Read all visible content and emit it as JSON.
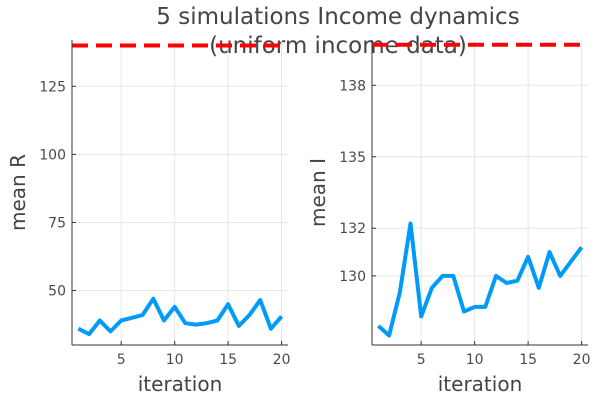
{
  "chart_data": {
    "title_line1": "5 simulations Income dynamics",
    "title_line2": "(uniform income data)",
    "line_color": "#009af9",
    "ref_color": "#ff0000",
    "panels": [
      {
        "type": "line",
        "xlabel": "iteration",
        "ylabel": "mean R",
        "xlim": [
          0.4,
          20.6
        ],
        "ylim": [
          30,
          142
        ],
        "xticks": [
          "5",
          "10",
          "15",
          "20"
        ],
        "yticks": [
          "50",
          "75",
          "100",
          "125"
        ],
        "reference_line": 140,
        "series": [
          {
            "x": [
              1,
              2,
              3,
              4,
              5,
              6,
              7,
              8,
              9,
              10,
              11,
              12,
              13,
              14,
              15,
              16,
              17,
              18,
              19,
              20
            ],
            "values": [
              36,
              34,
              39,
              35,
              39,
              40,
              41,
              47,
              39,
              44,
              38,
              37.5,
              38,
              39,
              45,
              37,
              41,
              46.5,
              36,
              40.5
            ]
          }
        ]
      },
      {
        "type": "line",
        "xlabel": "iteration",
        "ylabel": "mean I",
        "xlim": [
          0.4,
          20.6
        ],
        "ylim": [
          127.1,
          139.9
        ],
        "xticks": [
          "5",
          "10",
          "15",
          "20"
        ],
        "yticks": [
          "130",
          "132",
          "135",
          "138"
        ],
        "reference_line": 139.7,
        "series": [
          {
            "x": [
              1,
              2,
              3,
              4,
              5,
              6,
              7,
              8,
              9,
              10,
              11,
              12,
              13,
              14,
              15,
              16,
              17,
              18,
              19,
              20
            ],
            "values": [
              127.9,
              127.5,
              129.3,
              132.2,
              128.3,
              129.5,
              130,
              130,
              128.5,
              128.7,
              128.7,
              130,
              129.7,
              129.8,
              130.8,
              129.5,
              131,
              130,
              130.6,
              131.2
            ]
          }
        ]
      }
    ]
  }
}
